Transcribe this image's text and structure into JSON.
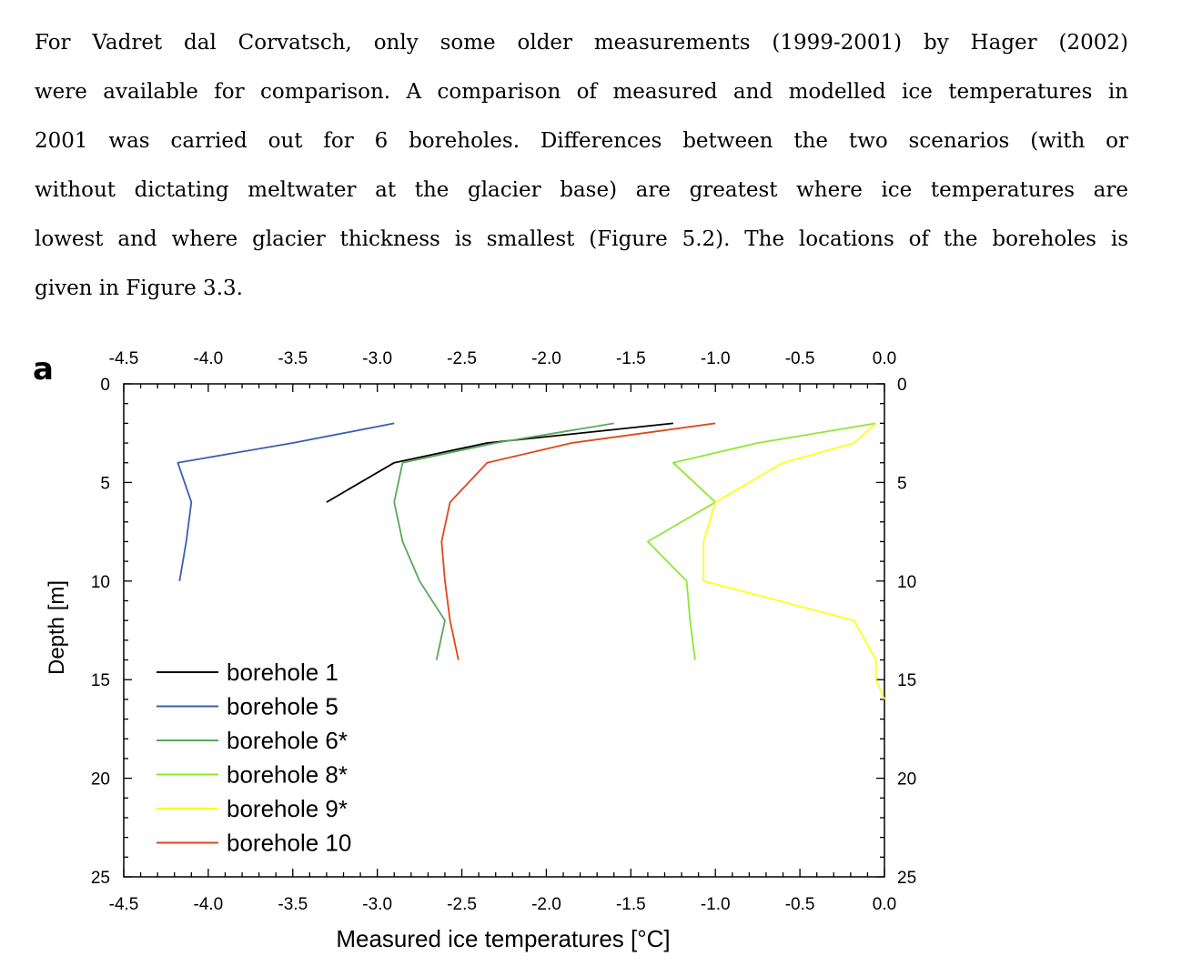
{
  "paragraph": {
    "lines": [
      "For Vadret dal Corvatsch, only some older measurements (1999-2001) by Hager (2002)",
      "were available for comparison. A comparison of measured and modelled ice temperatures in",
      "2001 was carried out for 6 boreholes. Differences between the two scenarios (with or",
      "without dictating meltwater at the glacier base) are greatest where ice temperatures are",
      "lowest and where glacier thickness is smallest (Figure 5.2). The locations of the boreholes is",
      "given in Figure 3.3."
    ]
  },
  "figure": {
    "panel_label": "a"
  },
  "chart_data": {
    "type": "line",
    "title": "",
    "xlabel": "Measured ice temperatures [°C]",
    "ylabel": "Depth [m]",
    "xlim": [
      -4.5,
      0.0
    ],
    "ylim": [
      0,
      25
    ],
    "y_inverted": true,
    "x_ticks": [
      "-4.5",
      "-4.0",
      "-3.5",
      "-3.0",
      "-2.5",
      "-2.0",
      "-1.5",
      "-1.0",
      "-0.5",
      "0.0"
    ],
    "y_ticks": [
      "0",
      "5",
      "10",
      "15",
      "20",
      "25"
    ],
    "legend_position": "bottom-left",
    "grid": false,
    "series": [
      {
        "name": "borehole 1",
        "color": "#000000",
        "points": [
          [
            -1.25,
            2
          ],
          [
            -2.35,
            3
          ],
          [
            -2.9,
            4
          ],
          [
            -3.3,
            6
          ]
        ]
      },
      {
        "name": "borehole 5",
        "color": "#3a5fb0",
        "points": [
          [
            -2.9,
            2
          ],
          [
            -3.5,
            3
          ],
          [
            -4.18,
            4
          ],
          [
            -4.1,
            6
          ],
          [
            -4.13,
            8
          ],
          [
            -4.17,
            10
          ]
        ]
      },
      {
        "name": "borehole 6*",
        "color": "#5aa85a",
        "points": [
          [
            -1.6,
            2
          ],
          [
            -2.3,
            3
          ],
          [
            -2.85,
            4
          ],
          [
            -2.9,
            6
          ],
          [
            -2.85,
            8
          ],
          [
            -2.75,
            10
          ],
          [
            -2.6,
            12
          ],
          [
            -2.65,
            14
          ]
        ]
      },
      {
        "name": "borehole 8*",
        "color": "#8ee82e",
        "points": [
          [
            -0.05,
            2
          ],
          [
            -0.75,
            3
          ],
          [
            -1.25,
            4
          ],
          [
            -1.0,
            6
          ],
          [
            -1.4,
            8
          ],
          [
            -1.17,
            10
          ],
          [
            -1.15,
            12
          ],
          [
            -1.12,
            14
          ]
        ]
      },
      {
        "name": "borehole 9*",
        "color": "#ffff1a",
        "points": [
          [
            -0.05,
            2
          ],
          [
            -0.18,
            3
          ],
          [
            -0.6,
            4
          ],
          [
            -1.0,
            6
          ],
          [
            -1.07,
            8
          ],
          [
            -1.07,
            10
          ],
          [
            -0.18,
            12
          ],
          [
            -0.05,
            14
          ],
          [
            -0.05,
            15
          ],
          [
            0.0,
            16
          ]
        ]
      },
      {
        "name": "borehole 10",
        "color": "#e0461c",
        "points": [
          [
            -1.0,
            2
          ],
          [
            -1.85,
            3
          ],
          [
            -2.35,
            4
          ],
          [
            -2.57,
            6
          ],
          [
            -2.62,
            8
          ],
          [
            -2.6,
            10
          ],
          [
            -2.57,
            12
          ],
          [
            -2.52,
            14
          ]
        ]
      }
    ]
  }
}
